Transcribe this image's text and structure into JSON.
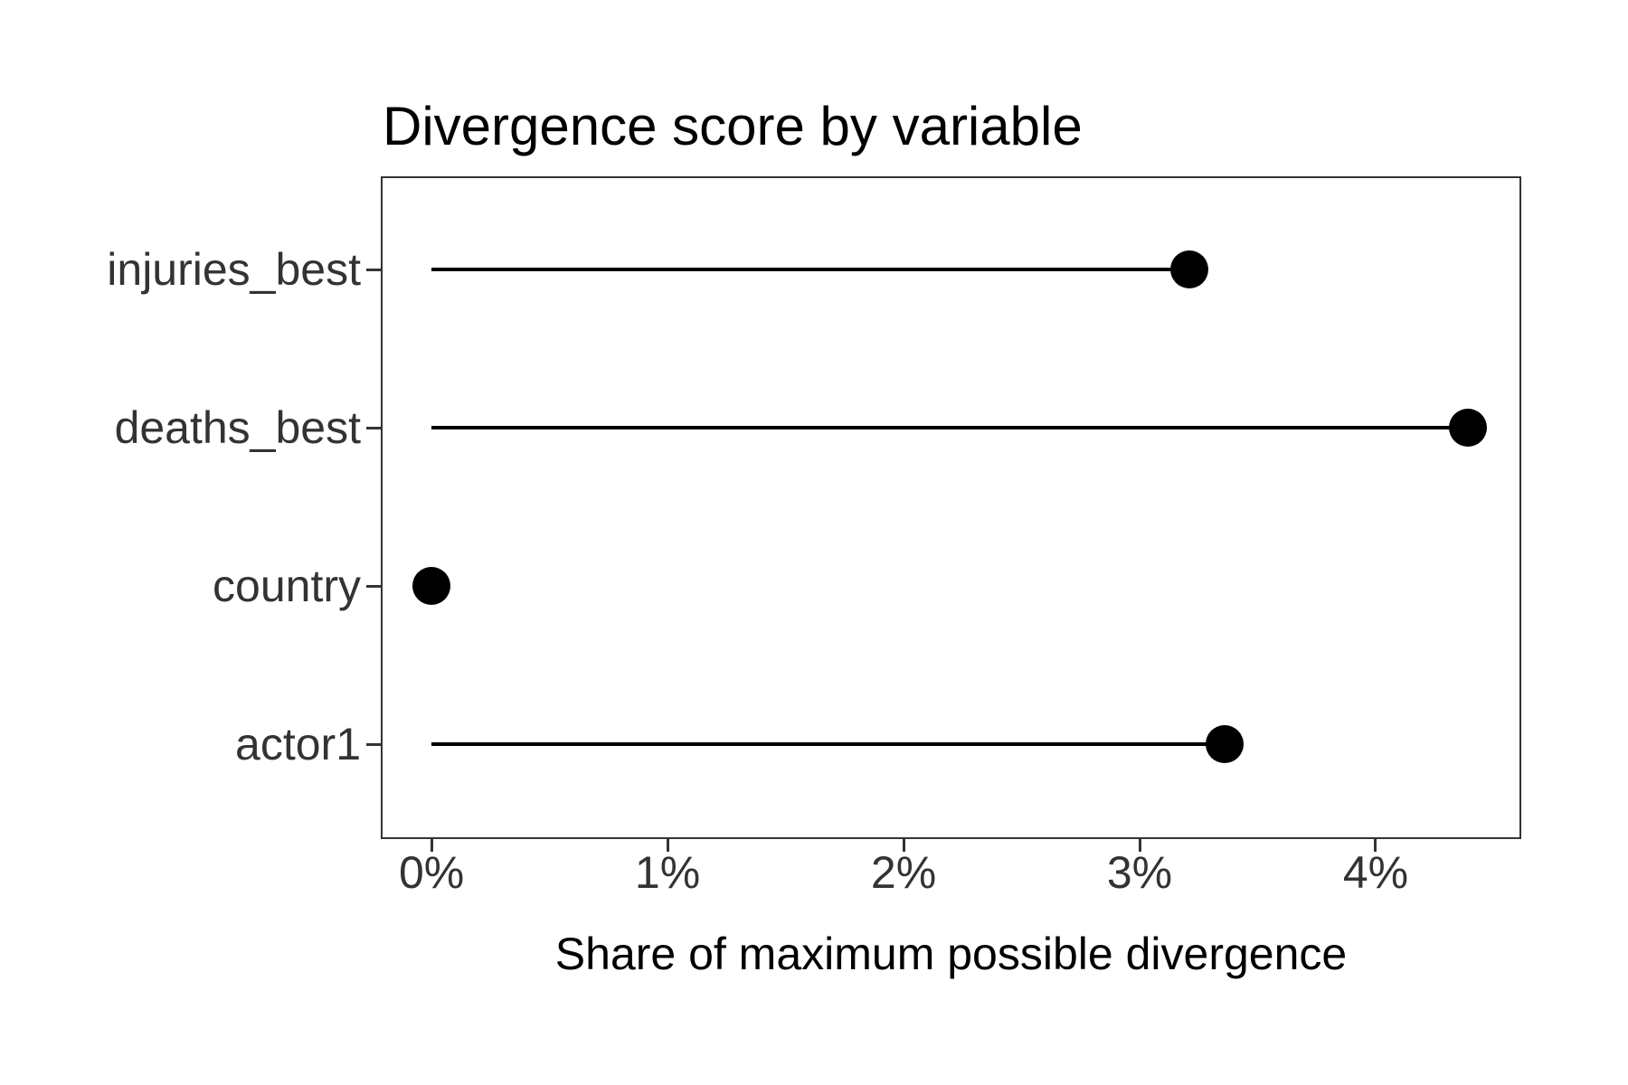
{
  "chart_data": {
    "type": "bar",
    "variant": "lollipop",
    "orientation": "horizontal",
    "title": "Divergence score by variable",
    "xlabel": "Share of maximum possible divergence",
    "ylabel": "",
    "categories": [
      "injuries_best",
      "deaths_best",
      "country",
      "actor1"
    ],
    "values": [
      3.21,
      4.39,
      0.0,
      3.36
    ],
    "value_unit": "percent",
    "x_ticks": [
      {
        "value": 0,
        "label": "0%"
      },
      {
        "value": 1,
        "label": "1%"
      },
      {
        "value": 2,
        "label": "2%"
      },
      {
        "value": 3,
        "label": "3%"
      },
      {
        "value": 4,
        "label": "4%"
      }
    ],
    "xlim": [
      -0.215,
      4.617
    ],
    "grid": false,
    "legend": "none",
    "colors": {
      "marker": "#000000",
      "stem": "#000000",
      "axis_text": "#333333",
      "title_text": "#000000",
      "panel_border": "#333333",
      "background": "#ffffff"
    }
  }
}
